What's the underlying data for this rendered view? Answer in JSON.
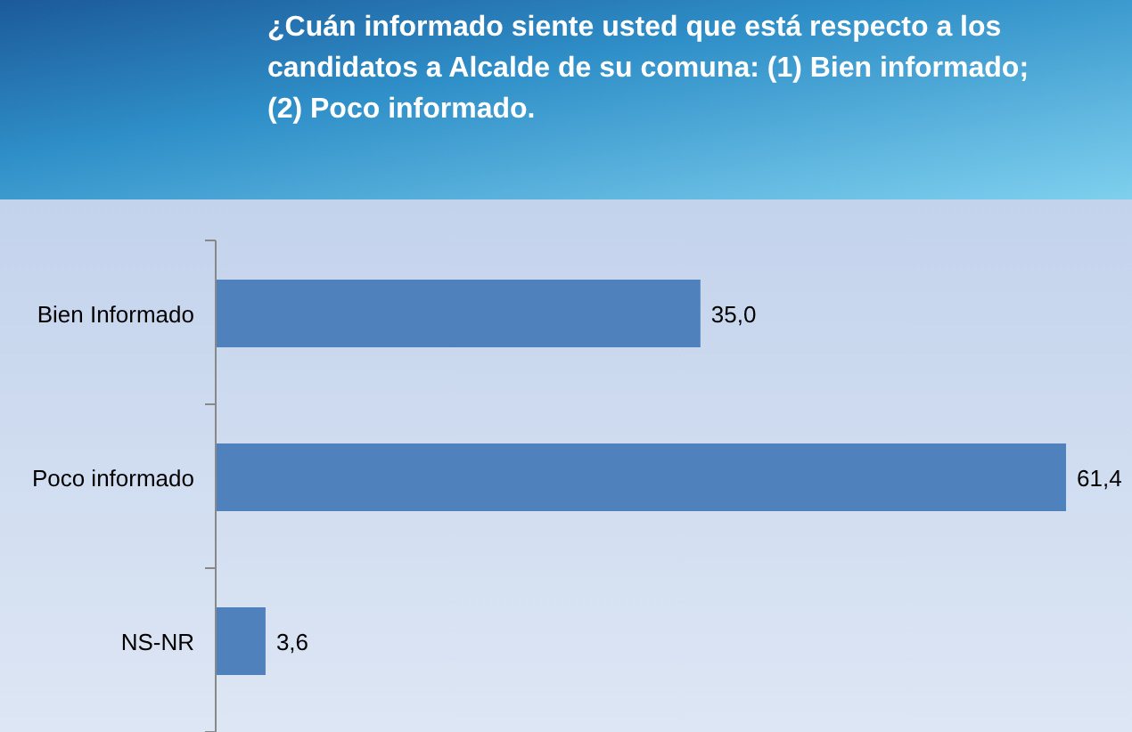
{
  "chart_data": {
    "type": "bar",
    "orientation": "horizontal",
    "title": "¿Cuán informado siente usted que está respecto a los candidatos a Alcalde de su comuna: (1) Bien informado; (2) Poco informado.",
    "categories": [
      "Bien Informado",
      "Poco informado",
      "NS-NR"
    ],
    "values": [
      35.0,
      61.4,
      3.6
    ],
    "value_labels": [
      "35,0",
      "61,4",
      "3,6"
    ],
    "color": "#4f81bd"
  }
}
